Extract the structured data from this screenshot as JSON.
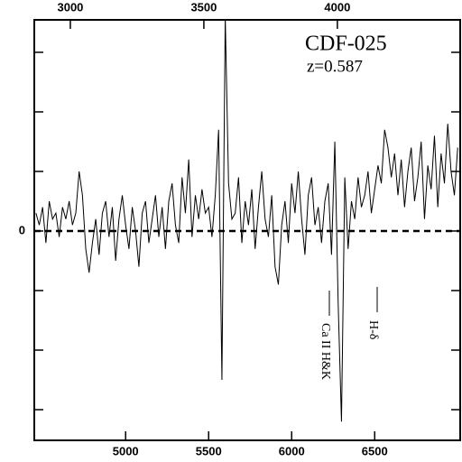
{
  "chart_data": {
    "type": "line",
    "annotations": [
      "CDF-025",
      "z=0.587",
      "Ca II H&K",
      "H-δ"
    ],
    "x": [
      4460,
      4480,
      4500,
      4520,
      4540,
      4560,
      4580,
      4600,
      4620,
      4640,
      4660,
      4680,
      4700,
      4720,
      4740,
      4760,
      4780,
      4800,
      4820,
      4840,
      4860,
      4880,
      4900,
      4920,
      4940,
      4960,
      4980,
      5000,
      5020,
      5040,
      5060,
      5080,
      5100,
      5120,
      5140,
      5160,
      5180,
      5200,
      5220,
      5240,
      5260,
      5280,
      5300,
      5320,
      5340,
      5360,
      5380,
      5400,
      5420,
      5440,
      5460,
      5480,
      5500,
      5520,
      5540,
      5560,
      5580,
      5600,
      5620,
      5640,
      5660,
      5680,
      5700,
      5720,
      5740,
      5760,
      5780,
      5800,
      5820,
      5840,
      5860,
      5880,
      5900,
      5920,
      5940,
      5960,
      5980,
      6000,
      6020,
      6040,
      6060,
      6080,
      6100,
      6120,
      6140,
      6160,
      6180,
      6200,
      6220,
      6240,
      6260,
      6280,
      6300,
      6320,
      6340,
      6360,
      6380,
      6400,
      6420,
      6440,
      6460,
      6480,
      6500,
      6520,
      6540,
      6560,
      6580,
      6600,
      6620,
      6640,
      6660,
      6680,
      6700,
      6720,
      6740,
      6760,
      6780,
      6800,
      6820,
      6840,
      6860,
      6880,
      6900,
      6920,
      6940,
      6960,
      6980,
      7000
    ],
    "values": [
      0.3,
      0.1,
      0.4,
      -0.2,
      0.5,
      0.2,
      0.3,
      -0.1,
      0.4,
      0.2,
      0.5,
      0.1,
      0.3,
      1.0,
      0.6,
      -0.3,
      -0.7,
      -0.2,
      0.2,
      -0.4,
      0.3,
      0.5,
      -0.1,
      0.4,
      -0.5,
      0.2,
      0.6,
      0.1,
      -0.3,
      0.4,
      0.0,
      -0.6,
      0.3,
      0.5,
      -0.2,
      0.2,
      0.6,
      -0.1,
      0.4,
      -0.3,
      0.5,
      0.8,
      0.1,
      -0.2,
      0.9,
      0.3,
      1.2,
      -0.1,
      0.6,
      0.2,
      0.7,
      0.3,
      0.4,
      -0.1,
      0.6,
      1.7,
      -2.5,
      3.6,
      0.8,
      0.2,
      0.3,
      0.9,
      -0.2,
      0.5,
      0.1,
      0.7,
      -0.3,
      0.4,
      1.0,
      0.2,
      -0.1,
      0.6,
      -0.6,
      -0.9,
      0.1,
      0.5,
      -0.2,
      0.8,
      0.3,
      1.0,
      0.2,
      -0.4,
      0.6,
      0.9,
      0.1,
      0.4,
      -0.2,
      0.5,
      0.8,
      -0.4,
      1.5,
      -1.2,
      -3.2,
      0.9,
      -0.3,
      0.5,
      0.2,
      0.9,
      0.4,
      0.6,
      1.0,
      0.3,
      0.7,
      1.1,
      0.8,
      1.7,
      1.4,
      0.9,
      1.3,
      0.6,
      1.2,
      0.4,
      1.0,
      1.4,
      0.5,
      0.9,
      1.5,
      0.2,
      1.1,
      0.7,
      1.6,
      0.4,
      1.3,
      0.8,
      1.8,
      1.0,
      0.6,
      1.4
    ],
    "color": "#000000",
    "xlim": [
      4450,
      7015
    ],
    "xticks": [
      5000,
      5500,
      6000,
      6500
    ],
    "x2lim": [
      2865,
      4460
    ],
    "x2ticks": [
      3000,
      3500,
      4000
    ],
    "ylim": [
      -3.515,
      3.545
    ],
    "yticks": [
      0
    ],
    "yminor_ticks": [
      -3,
      -2,
      -1,
      1,
      2,
      3
    ],
    "zero_line": true
  }
}
